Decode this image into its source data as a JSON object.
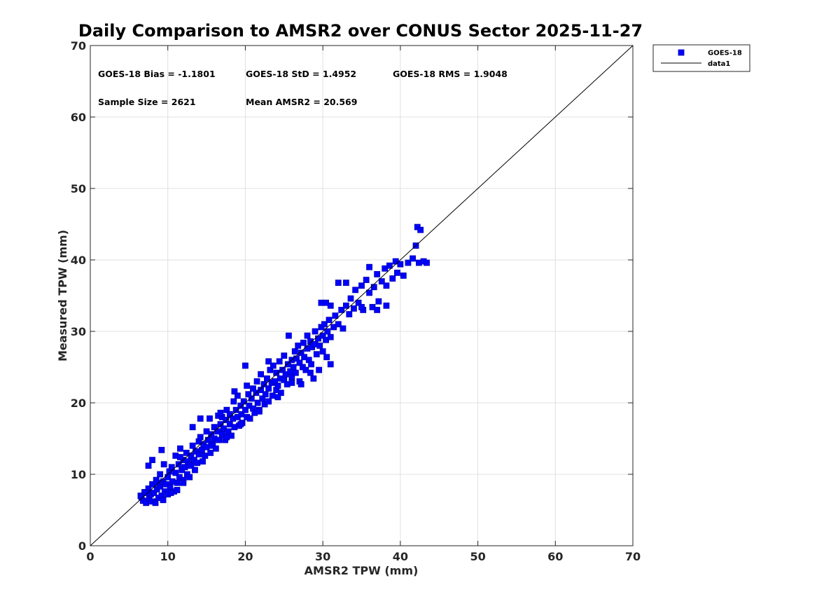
{
  "chart_data": {
    "type": "scatter",
    "title": "Daily Comparison to AMSR2 over CONUS Sector 2025-11-27",
    "xlabel": "AMSR2 TPW (mm)",
    "ylabel": "Measured TPW (mm)",
    "xlim": [
      0,
      70
    ],
    "ylim": [
      0,
      70
    ],
    "xticks": [
      "0",
      "10",
      "20",
      "30",
      "40",
      "50",
      "60",
      "70"
    ],
    "yticks": [
      "0",
      "10",
      "20",
      "30",
      "40",
      "50",
      "60",
      "70"
    ],
    "grid": true,
    "legend_position": "outside-top-right",
    "stats": {
      "bias": "GOES-18 Bias = -1.1801",
      "std": "GOES-18 StD = 1.4952",
      "rms": "GOES-18 RMS = 1.9048",
      "sample_size": "Sample Size = 2621",
      "mean": "Mean AMSR2 = 20.569"
    },
    "series": [
      {
        "name": "GOES-18",
        "kind": "scatter",
        "marker": "square",
        "color": "#0000ff",
        "edge_color": "#0000b0",
        "points": [
          [
            6.5,
            7.0
          ],
          [
            6.8,
            6.3
          ],
          [
            7.0,
            7.5
          ],
          [
            7.2,
            6.0
          ],
          [
            7.5,
            8.0
          ],
          [
            7.6,
            6.6
          ],
          [
            7.8,
            7.2
          ],
          [
            8.0,
            6.2
          ],
          [
            8.0,
            8.6
          ],
          [
            8.2,
            7.4
          ],
          [
            8.4,
            6.0
          ],
          [
            8.5,
            9.2
          ],
          [
            8.6,
            7.9
          ],
          [
            8.8,
            6.7
          ],
          [
            9.0,
            8.3
          ],
          [
            9.0,
            10.0
          ],
          [
            9.2,
            7.0
          ],
          [
            9.4,
            9.0
          ],
          [
            9.5,
            11.4
          ],
          [
            9.6,
            7.6
          ],
          [
            9.8,
            8.6
          ],
          [
            10.0,
            9.6
          ],
          [
            10.0,
            7.2
          ],
          [
            10.2,
            10.4
          ],
          [
            10.3,
            8.2
          ],
          [
            10.5,
            11.0
          ],
          [
            10.6,
            9.0
          ],
          [
            10.8,
            7.6
          ],
          [
            11.0,
            10.2
          ],
          [
            11.0,
            12.6
          ],
          [
            11.2,
            8.8
          ],
          [
            11.4,
            11.4
          ],
          [
            11.5,
            9.6
          ],
          [
            11.6,
            13.6
          ],
          [
            11.8,
            10.6
          ],
          [
            12.0,
            12.0
          ],
          [
            12.0,
            9.2
          ],
          [
            12.2,
            11.0
          ],
          [
            12.4,
            13.0
          ],
          [
            12.5,
            10.0
          ],
          [
            12.6,
            11.8
          ],
          [
            12.8,
            9.6
          ],
          [
            13.0,
            12.6
          ],
          [
            13.0,
            11.2
          ],
          [
            13.2,
            14.0
          ],
          [
            13.4,
            12.0
          ],
          [
            13.5,
            10.6
          ],
          [
            13.6,
            13.2
          ],
          [
            13.8,
            11.6
          ],
          [
            14.0,
            14.6
          ],
          [
            14.0,
            12.8
          ],
          [
            14.2,
            15.2
          ],
          [
            14.4,
            13.4
          ],
          [
            14.5,
            11.8
          ],
          [
            14.6,
            14.2
          ],
          [
            14.8,
            12.6
          ],
          [
            15.0,
            16.0
          ],
          [
            15.0,
            13.8
          ],
          [
            15.2,
            14.8
          ],
          [
            15.4,
            17.8
          ],
          [
            15.5,
            13.0
          ],
          [
            15.6,
            15.6
          ],
          [
            15.8,
            14.2
          ],
          [
            16.0,
            16.6
          ],
          [
            16.0,
            15.0
          ],
          [
            16.2,
            13.6
          ],
          [
            16.4,
            16.0
          ],
          [
            16.5,
            18.2
          ],
          [
            16.6,
            14.8
          ],
          [
            16.8,
            17.0
          ],
          [
            17.0,
            15.6
          ],
          [
            17.0,
            18.0
          ],
          [
            17.2,
            16.4
          ],
          [
            17.4,
            14.8
          ],
          [
            17.5,
            17.6
          ],
          [
            17.6,
            19.0
          ],
          [
            17.8,
            16.0
          ],
          [
            18.0,
            18.4
          ],
          [
            18.0,
            17.0
          ],
          [
            18.2,
            15.4
          ],
          [
            18.4,
            17.8
          ],
          [
            18.5,
            20.2
          ],
          [
            18.6,
            16.6
          ],
          [
            18.8,
            19.0
          ],
          [
            19.0,
            18.0
          ],
          [
            19.0,
            21.0
          ],
          [
            19.2,
            16.8
          ],
          [
            19.4,
            19.6
          ],
          [
            19.5,
            18.4
          ],
          [
            19.6,
            17.2
          ],
          [
            19.8,
            20.2
          ],
          [
            20.0,
            19.0
          ],
          [
            20.0,
            25.2
          ],
          [
            20.2,
            18.0
          ],
          [
            20.4,
            21.2
          ],
          [
            20.5,
            19.6
          ],
          [
            20.6,
            17.8
          ],
          [
            20.8,
            20.6
          ],
          [
            21.0,
            22.0
          ],
          [
            21.0,
            19.2
          ],
          [
            21.2,
            18.6
          ],
          [
            21.4,
            21.4
          ],
          [
            21.5,
            23.0
          ],
          [
            21.6,
            20.0
          ],
          [
            21.8,
            19.0
          ],
          [
            22.0,
            21.8
          ],
          [
            22.0,
            24.0
          ],
          [
            22.2,
            20.6
          ],
          [
            22.4,
            22.6
          ],
          [
            22.5,
            19.8
          ],
          [
            22.6,
            21.2
          ],
          [
            22.8,
            23.4
          ],
          [
            23.0,
            22.0
          ],
          [
            23.0,
            20.2
          ],
          [
            23.2,
            24.6
          ],
          [
            23.4,
            22.8
          ],
          [
            23.5,
            21.0
          ],
          [
            23.6,
            25.2
          ],
          [
            23.8,
            23.0
          ],
          [
            24.0,
            21.8
          ],
          [
            24.0,
            24.2
          ],
          [
            24.2,
            22.4
          ],
          [
            24.4,
            25.8
          ],
          [
            24.5,
            23.4
          ],
          [
            24.6,
            21.4
          ],
          [
            24.8,
            24.6
          ],
          [
            25.0,
            23.2
          ],
          [
            25.0,
            26.6
          ],
          [
            25.2,
            24.0
          ],
          [
            25.4,
            22.6
          ],
          [
            25.5,
            25.4
          ],
          [
            25.6,
            29.4
          ],
          [
            25.8,
            24.4
          ],
          [
            26.0,
            26.0
          ],
          [
            26.0,
            23.6
          ],
          [
            26.2,
            25.0
          ],
          [
            26.4,
            27.2
          ],
          [
            26.5,
            24.2
          ],
          [
            26.6,
            26.2
          ],
          [
            26.8,
            28.0
          ],
          [
            27.0,
            25.6
          ],
          [
            27.0,
            23.0
          ],
          [
            27.2,
            27.0
          ],
          [
            27.4,
            25.0
          ],
          [
            27.5,
            28.4
          ],
          [
            27.6,
            26.4
          ],
          [
            27.8,
            24.6
          ],
          [
            28.0,
            27.6
          ],
          [
            28.0,
            29.4
          ],
          [
            28.2,
            26.0
          ],
          [
            28.4,
            28.6
          ],
          [
            28.5,
            25.4
          ],
          [
            28.6,
            27.8
          ],
          [
            28.8,
            23.4
          ],
          [
            29.0,
            28.2
          ],
          [
            29.0,
            30.0
          ],
          [
            29.2,
            26.8
          ],
          [
            29.4,
            29.0
          ],
          [
            29.5,
            24.6
          ],
          [
            29.6,
            28.0
          ],
          [
            29.8,
            30.6
          ],
          [
            30.0,
            29.4
          ],
          [
            30.0,
            27.2
          ],
          [
            30.2,
            31.0
          ],
          [
            30.4,
            28.8
          ],
          [
            30.5,
            26.4
          ],
          [
            30.6,
            30.0
          ],
          [
            30.8,
            31.6
          ],
          [
            31.0,
            29.2
          ],
          [
            31.0,
            33.6
          ],
          [
            31.4,
            30.6
          ],
          [
            31.6,
            32.2
          ],
          [
            32.0,
            31.0
          ],
          [
            32.0,
            36.8
          ],
          [
            32.4,
            33.0
          ],
          [
            32.6,
            30.4
          ],
          [
            33.0,
            33.6
          ],
          [
            33.0,
            36.8
          ],
          [
            33.4,
            32.4
          ],
          [
            33.6,
            34.6
          ],
          [
            34.0,
            33.2
          ],
          [
            34.2,
            35.8
          ],
          [
            34.6,
            34.0
          ],
          [
            35.0,
            36.4
          ],
          [
            35.2,
            33.0
          ],
          [
            35.6,
            37.2
          ],
          [
            36.0,
            35.4
          ],
          [
            36.0,
            39.0
          ],
          [
            36.4,
            33.4
          ],
          [
            36.6,
            36.2
          ],
          [
            37.0,
            38.0
          ],
          [
            37.2,
            34.2
          ],
          [
            37.6,
            37.0
          ],
          [
            38.0,
            38.8
          ],
          [
            38.2,
            36.4
          ],
          [
            38.6,
            39.2
          ],
          [
            39.0,
            37.4
          ],
          [
            39.4,
            39.8
          ],
          [
            39.6,
            38.2
          ],
          [
            40.0,
            39.4
          ],
          [
            40.4,
            37.8
          ],
          [
            41.0,
            39.6
          ],
          [
            41.6,
            40.2
          ],
          [
            42.0,
            42.0
          ],
          [
            42.2,
            44.6
          ],
          [
            42.4,
            39.6
          ],
          [
            43.0,
            39.8
          ],
          [
            43.4,
            39.6
          ],
          [
            42.6,
            44.2
          ],
          [
            37.0,
            33.0
          ],
          [
            38.2,
            33.6
          ],
          [
            35.0,
            33.4
          ],
          [
            31.0,
            25.4
          ],
          [
            30.4,
            34.0
          ],
          [
            29.8,
            34.0
          ],
          [
            23.0,
            25.8
          ],
          [
            26.0,
            22.8
          ],
          [
            27.2,
            22.6
          ],
          [
            28.4,
            24.2
          ],
          [
            14.2,
            17.8
          ],
          [
            13.2,
            16.6
          ],
          [
            11.6,
            12.4
          ],
          [
            8.0,
            12.0
          ],
          [
            7.5,
            11.2
          ],
          [
            9.2,
            13.4
          ],
          [
            15.6,
            14.0
          ],
          [
            17.6,
            15.2
          ],
          [
            19.4,
            17.0
          ],
          [
            21.8,
            18.8
          ],
          [
            24.2,
            20.8
          ],
          [
            10.4,
            7.4
          ],
          [
            12.0,
            8.8
          ],
          [
            9.4,
            6.4
          ],
          [
            11.2,
            7.8
          ],
          [
            6.6,
            6.8
          ],
          [
            7.2,
            7.4
          ],
          [
            8.6,
            8.8
          ],
          [
            16.8,
            18.6
          ],
          [
            18.6,
            21.6
          ],
          [
            20.2,
            22.4
          ]
        ]
      },
      {
        "name": "data1",
        "kind": "line",
        "color": "#000000",
        "points": [
          [
            0,
            0
          ],
          [
            70,
            70
          ]
        ]
      }
    ]
  }
}
